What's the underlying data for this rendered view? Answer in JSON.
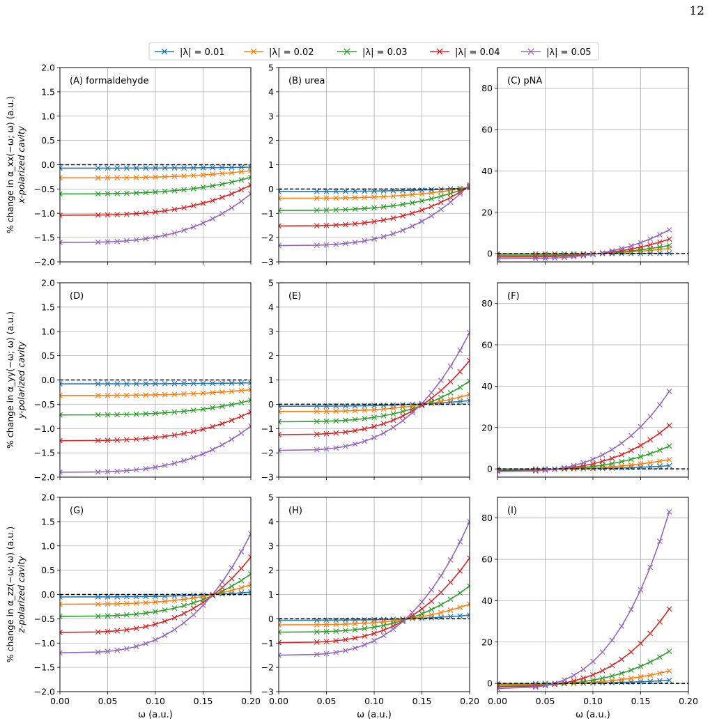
{
  "page_number": "12",
  "legend": {
    "placement": "top-center",
    "entries": [
      {
        "label": "|λ| = 0.01",
        "color": "#1f77b4"
      },
      {
        "label": "|λ| = 0.02",
        "color": "#ff7f0e"
      },
      {
        "label": "|λ| = 0.03",
        "color": "#2ca02c"
      },
      {
        "label": "|λ| = 0.04",
        "color": "#d62728"
      },
      {
        "label": "|λ| = 0.05",
        "color": "#9467bd"
      }
    ]
  },
  "row_labels": [
    {
      "line1": "% change in α_xx(−ω; ω) (a.u.)",
      "line2": "x-polarized cavity"
    },
    {
      "line1": "% change in α_yy(−ω; ω) (a.u.)",
      "line2": "y-polarized cavity"
    },
    {
      "line1": "% change in α_zz(−ω; ω) (a.u.)",
      "line2": "z-polarized cavity"
    }
  ],
  "xlabel": "ω (a.u.)",
  "chart_data": [
    {
      "type": "line",
      "title": "(A) formaldehyde",
      "row": 0,
      "col": 0,
      "xlim": [
        0,
        0.2
      ],
      "ylim": [
        -2,
        2
      ],
      "xmax": 0.2,
      "grid": true,
      "xticks": [
        "0.00",
        "0.05",
        "0.10",
        "0.15",
        "0.20"
      ],
      "yticks": [
        "−2.0",
        "−1.5",
        "−1.0",
        "−0.5",
        "0.0",
        "0.5",
        "1.0",
        "1.5",
        "2.0"
      ],
      "series": [
        {
          "name": "|λ| = 0.01",
          "start": -0.07,
          "end": -0.05
        },
        {
          "name": "|λ| = 0.02",
          "start": -0.27,
          "end": -0.12
        },
        {
          "name": "|λ| = 0.03",
          "start": -0.6,
          "end": -0.26
        },
        {
          "name": "|λ| = 0.04",
          "start": -1.04,
          "end": -0.42
        },
        {
          "name": "|λ| = 0.05",
          "start": -1.6,
          "end": -0.6
        }
      ]
    },
    {
      "type": "line",
      "title": "(B) urea",
      "row": 0,
      "col": 1,
      "xlim": [
        0,
        0.2
      ],
      "ylim": [
        -3,
        5
      ],
      "xmax": 0.2,
      "grid": true,
      "xticks": [
        "0.00",
        "0.05",
        "0.10",
        "0.15",
        "0.20"
      ],
      "yticks": [
        "−3",
        "−2",
        "−1",
        "0",
        "1",
        "2",
        "3",
        "4",
        "5"
      ],
      "series": [
        {
          "name": "|λ| = 0.01",
          "start": -0.1,
          "end": 0.05
        },
        {
          "name": "|λ| = 0.02",
          "start": -0.38,
          "end": 0.08
        },
        {
          "name": "|λ| = 0.03",
          "start": -0.88,
          "end": 0.1
        },
        {
          "name": "|λ| = 0.04",
          "start": -1.52,
          "end": 0.12
        },
        {
          "name": "|λ| = 0.05",
          "start": -2.33,
          "end": 0.18
        }
      ]
    },
    {
      "type": "line",
      "title": "(C) pNA",
      "row": 0,
      "col": 2,
      "xlim": [
        0,
        0.2
      ],
      "ylim": [
        -4,
        90
      ],
      "xmax": 0.18,
      "grid": true,
      "xticks": [
        "0.00",
        "0.05",
        "0.10",
        "0.15",
        "0.20"
      ],
      "yticks": [
        "0",
        "20",
        "40",
        "60",
        "80"
      ],
      "series": [
        {
          "name": "|λ| = 0.01",
          "start": -0.1,
          "end": 0.2
        },
        {
          "name": "|λ| = 0.02",
          "start": -0.4,
          "end": 2.5
        },
        {
          "name": "|λ| = 0.03",
          "start": -0.9,
          "end": 4
        },
        {
          "name": "|λ| = 0.04",
          "start": -1.6,
          "end": 7
        },
        {
          "name": "|λ| = 0.05",
          "start": -2.5,
          "end": 11.5
        }
      ]
    },
    {
      "type": "line",
      "title": "(D)",
      "row": 1,
      "col": 0,
      "xlim": [
        0,
        0.2
      ],
      "ylim": [
        -2,
        2
      ],
      "xmax": 0.2,
      "grid": true,
      "xticks": [
        "0.00",
        "0.05",
        "0.10",
        "0.15",
        "0.20"
      ],
      "yticks": [
        "−2.0",
        "−1.5",
        "−1.0",
        "−0.5",
        "0.0",
        "0.5",
        "1.0",
        "1.5",
        "2.0"
      ],
      "series": [
        {
          "name": "|λ| = 0.01",
          "start": -0.08,
          "end": -0.06
        },
        {
          "name": "|λ| = 0.02",
          "start": -0.32,
          "end": -0.2
        },
        {
          "name": "|λ| = 0.03",
          "start": -0.72,
          "end": -0.42
        },
        {
          "name": "|λ| = 0.04",
          "start": -1.25,
          "end": -0.66
        },
        {
          "name": "|λ| = 0.05",
          "start": -1.9,
          "end": -0.95
        }
      ]
    },
    {
      "type": "line",
      "title": "(E)",
      "row": 1,
      "col": 1,
      "xlim": [
        0,
        0.2
      ],
      "ylim": [
        -3,
        5
      ],
      "xmax": 0.2,
      "grid": true,
      "xticks": [
        "0.00",
        "0.05",
        "0.10",
        "0.15",
        "0.20"
      ],
      "yticks": [
        "−3",
        "−2",
        "−1",
        "0",
        "1",
        "2",
        "3",
        "4",
        "5"
      ],
      "series": [
        {
          "name": "|λ| = 0.01",
          "start": -0.08,
          "end": 0.15
        },
        {
          "name": "|λ| = 0.02",
          "start": -0.3,
          "end": 0.4
        },
        {
          "name": "|λ| = 0.03",
          "start": -0.72,
          "end": 0.95
        },
        {
          "name": "|λ| = 0.04",
          "start": -1.25,
          "end": 1.8
        },
        {
          "name": "|λ| = 0.05",
          "start": -1.9,
          "end": 2.95
        }
      ]
    },
    {
      "type": "line",
      "title": "(F)",
      "row": 1,
      "col": 2,
      "xlim": [
        0,
        0.2
      ],
      "ylim": [
        -4,
        90
      ],
      "xmax": 0.18,
      "grid": true,
      "xticks": [
        "0.00",
        "0.05",
        "0.10",
        "0.15",
        "0.20"
      ],
      "yticks": [
        "0",
        "20",
        "40",
        "60",
        "80"
      ],
      "series": [
        {
          "name": "|λ| = 0.01",
          "start": -0.1,
          "end": 1.5
        },
        {
          "name": "|λ| = 0.02",
          "start": -0.3,
          "end": 4.5
        },
        {
          "name": "|λ| = 0.03",
          "start": -0.6,
          "end": 11
        },
        {
          "name": "|λ| = 0.04",
          "start": -0.9,
          "end": 21
        },
        {
          "name": "|λ| = 0.05",
          "start": -1.3,
          "end": 37.5
        }
      ]
    },
    {
      "type": "line",
      "title": "(G)",
      "row": 2,
      "col": 0,
      "xlim": [
        0,
        0.2
      ],
      "ylim": [
        -2,
        2
      ],
      "xmax": 0.2,
      "grid": true,
      "xticks": [
        "0.00",
        "0.05",
        "0.10",
        "0.15",
        "0.20"
      ],
      "yticks": [
        "−2.0",
        "−1.5",
        "−1.0",
        "−0.5",
        "0.0",
        "0.5",
        "1.0",
        "1.5",
        "2.0"
      ],
      "series": [
        {
          "name": "|λ| = 0.01",
          "start": -0.05,
          "end": 0.05
        },
        {
          "name": "|λ| = 0.02",
          "start": -0.2,
          "end": 0.2
        },
        {
          "name": "|λ| = 0.03",
          "start": -0.45,
          "end": 0.42
        },
        {
          "name": "|λ| = 0.04",
          "start": -0.78,
          "end": 0.77
        },
        {
          "name": "|λ| = 0.05",
          "start": -1.2,
          "end": 1.25
        }
      ]
    },
    {
      "type": "line",
      "title": "(H)",
      "row": 2,
      "col": 1,
      "xlim": [
        0,
        0.2
      ],
      "ylim": [
        -3,
        5
      ],
      "xmax": 0.2,
      "grid": true,
      "xticks": [
        "0.00",
        "0.05",
        "0.10",
        "0.15",
        "0.20"
      ],
      "yticks": [
        "−3",
        "−2",
        "−1",
        "0",
        "1",
        "2",
        "3",
        "4",
        "5"
      ],
      "series": [
        {
          "name": "|λ| = 0.01",
          "start": -0.06,
          "end": 0.15
        },
        {
          "name": "|λ| = 0.02",
          "start": -0.25,
          "end": 0.6
        },
        {
          "name": "|λ| = 0.03",
          "start": -0.55,
          "end": 1.35
        },
        {
          "name": "|λ| = 0.04",
          "start": -0.98,
          "end": 2.5
        },
        {
          "name": "|λ| = 0.05",
          "start": -1.5,
          "end": 4.0
        }
      ]
    },
    {
      "type": "line",
      "title": "(I)",
      "row": 2,
      "col": 2,
      "xlim": [
        0,
        0.2
      ],
      "ylim": [
        -4,
        90
      ],
      "xmax": 0.18,
      "grid": true,
      "xticks": [
        "0.00",
        "0.05",
        "0.10",
        "0.15",
        "0.20"
      ],
      "yticks": [
        "0",
        "20",
        "40",
        "60",
        "80"
      ],
      "series": [
        {
          "name": "|λ| = 0.01",
          "start": -0.1,
          "end": 1.5
        },
        {
          "name": "|λ| = 0.02",
          "start": -0.4,
          "end": 6
        },
        {
          "name": "|λ| = 0.03",
          "start": -0.9,
          "end": 15.5
        },
        {
          "name": "|λ| = 0.04",
          "start": -1.6,
          "end": 36
        },
        {
          "name": "|λ| = 0.05",
          "start": -2.5,
          "end": 83
        }
      ]
    }
  ]
}
